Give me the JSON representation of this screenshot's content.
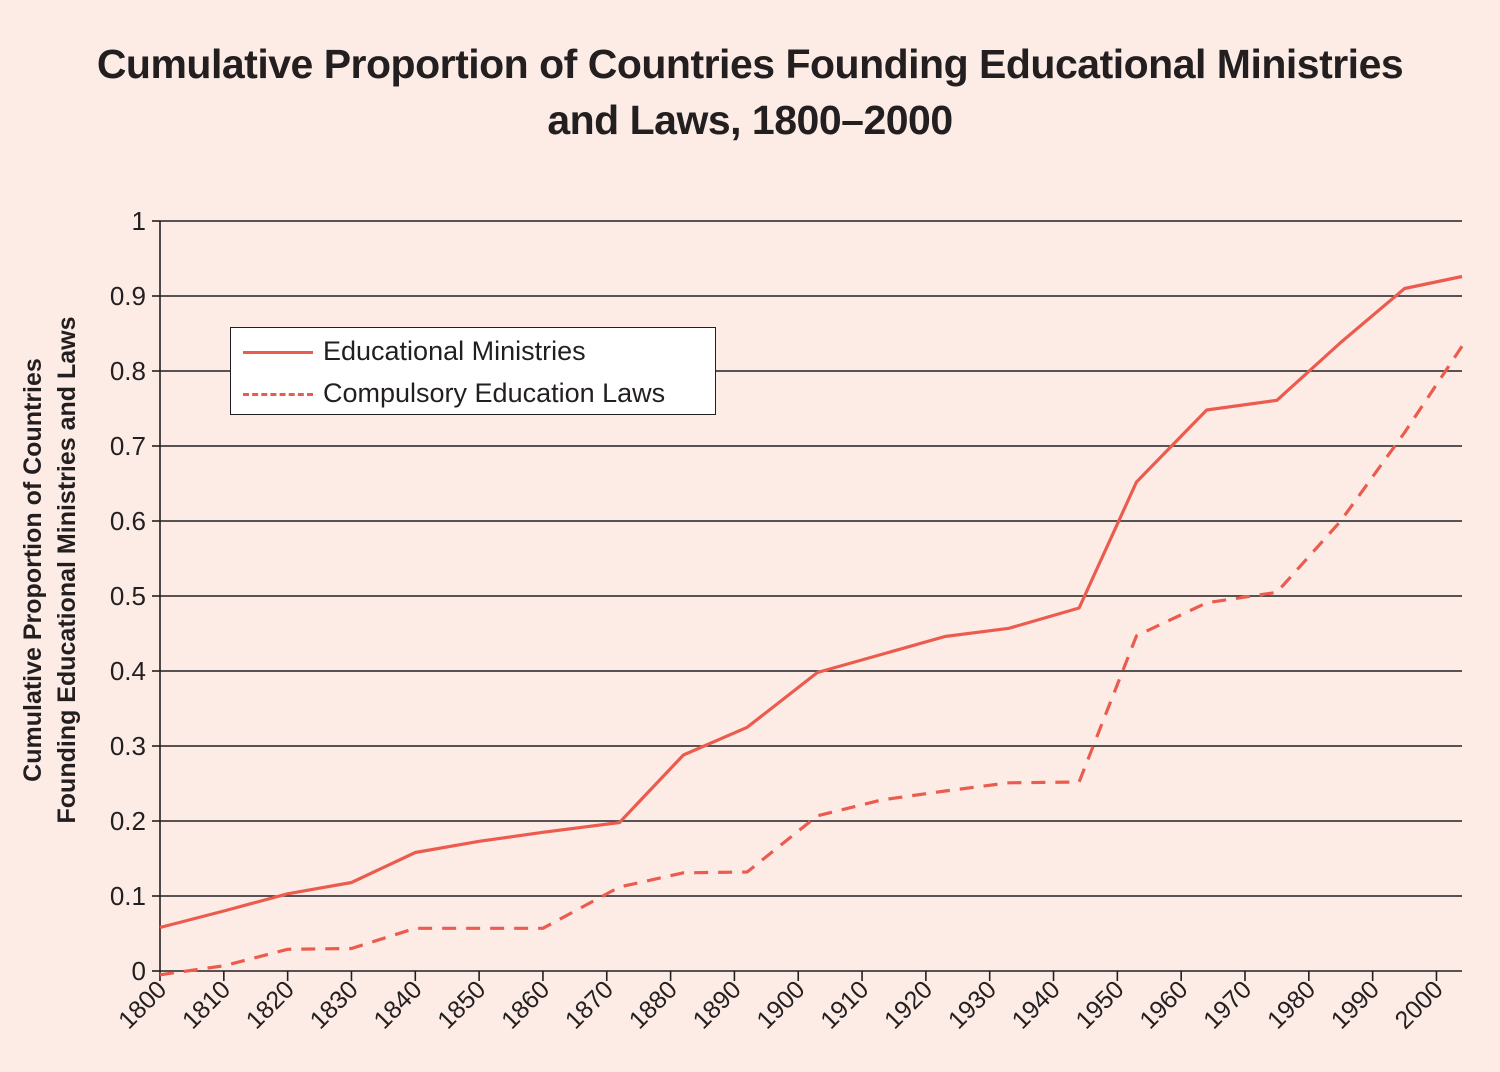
{
  "title_lines": [
    "Cumulative Proportion of Countries Founding Educational Ministries",
    "and Laws, 1800–2000"
  ],
  "ylabel_lines": [
    "Cumulative Proportion of Countries",
    "Founding Educational Ministries and Laws"
  ],
  "legend": {
    "ministries": "Educational Ministries",
    "laws": "Compulsory Education Laws"
  },
  "colors": {
    "background": "#fdece6",
    "line": "#ec5c4e",
    "grid": "#231f20",
    "text": "#231f20"
  },
  "chart_data": {
    "type": "line",
    "title": "Cumulative Proportion of Countries Founding Educational Ministries and Laws, 1800–2000",
    "xlabel": "",
    "ylabel": "Cumulative Proportion of Countries Founding Educational Ministries and Laws",
    "xlim": [
      1800,
      2004
    ],
    "ylim": [
      0,
      1
    ],
    "x_ticks": [
      "1800",
      "1810",
      "1820",
      "1830",
      "1840",
      "1850",
      "1860",
      "1870",
      "1880",
      "1890",
      "1900",
      "1910",
      "1920",
      "1930",
      "1940",
      "1950",
      "1960",
      "1970",
      "1980",
      "1990",
      "2000"
    ],
    "y_ticks": [
      "0",
      "0.1",
      "0.2",
      "0.3",
      "0.4",
      "0.5",
      "0.6",
      "0.7",
      "0.8",
      "0.9",
      "1"
    ],
    "grid": "horizontal",
    "legend_position": "upper-left",
    "series": [
      {
        "name": "Educational Ministries",
        "style": "solid",
        "points": [
          [
            1800,
            0.058
          ],
          [
            1810,
            0.08
          ],
          [
            1820,
            0.103
          ],
          [
            1830,
            0.118
          ],
          [
            1840,
            0.158
          ],
          [
            1850,
            0.173
          ],
          [
            1860,
            0.185
          ],
          [
            1872,
            0.198
          ],
          [
            1882,
            0.288
          ],
          [
            1892,
            0.325
          ],
          [
            1903,
            0.398
          ],
          [
            1913,
            0.422
          ],
          [
            1923,
            0.446
          ],
          [
            1933,
            0.457
          ],
          [
            1944,
            0.484
          ],
          [
            1953,
            0.652
          ],
          [
            1964,
            0.748
          ],
          [
            1975,
            0.761
          ],
          [
            1985,
            0.838
          ],
          [
            1995,
            0.91
          ],
          [
            2004,
            0.926
          ]
        ]
      },
      {
        "name": "Compulsory Education Laws",
        "style": "dashed",
        "points": [
          [
            1800,
            -0.005
          ],
          [
            1810,
            0.007
          ],
          [
            1820,
            0.029
          ],
          [
            1830,
            0.03
          ],
          [
            1840,
            0.057
          ],
          [
            1850,
            0.057
          ],
          [
            1860,
            0.057
          ],
          [
            1872,
            0.112
          ],
          [
            1882,
            0.131
          ],
          [
            1892,
            0.132
          ],
          [
            1903,
            0.207
          ],
          [
            1913,
            0.228
          ],
          [
            1923,
            0.24
          ],
          [
            1933,
            0.251
          ],
          [
            1944,
            0.252
          ],
          [
            1953,
            0.447
          ],
          [
            1964,
            0.491
          ],
          [
            1975,
            0.505
          ],
          [
            1985,
            0.6
          ],
          [
            1995,
            0.718
          ],
          [
            2004,
            0.833
          ]
        ]
      }
    ]
  }
}
